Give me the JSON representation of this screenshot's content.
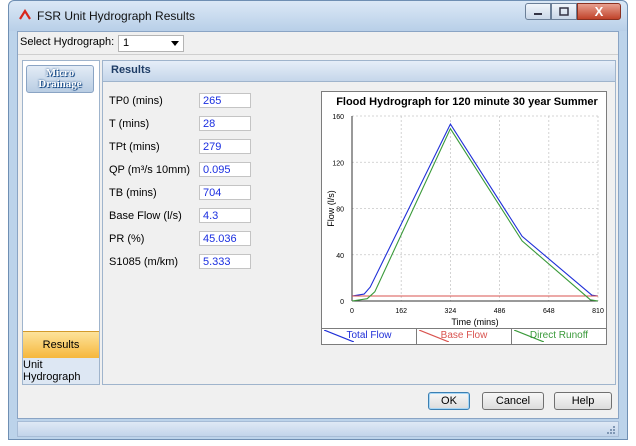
{
  "window": {
    "title": "FSR Unit Hydrograph Results",
    "close_glyph": "X"
  },
  "selector": {
    "label": "Select Hydrograph:",
    "value": "1"
  },
  "sidebar": {
    "logo_line1": "Micro",
    "logo_line2": "Drainage",
    "items": [
      {
        "label": "Results",
        "active": true
      },
      {
        "label": "Unit Hydrograph",
        "active": false
      }
    ]
  },
  "panel": {
    "title": "Results",
    "fields": [
      {
        "label": "TP0 (mins)",
        "value": "265"
      },
      {
        "label": "T (mins)",
        "value": "28"
      },
      {
        "label": "TPt (mins)",
        "value": "279"
      },
      {
        "label": "QP (m³/s 10mm)",
        "value": "0.095"
      },
      {
        "label": "TB (mins)",
        "value": "704"
      },
      {
        "label": "Base Flow (l/s)",
        "value": "4.3"
      },
      {
        "label": "PR (%)",
        "value": "45.036"
      },
      {
        "label": "S1085 (m/km)",
        "value": "5.333"
      }
    ]
  },
  "chart_data": {
    "type": "line",
    "title": "Flood Hydrograph for 120 minute 30 year Summer",
    "xlabel": "Time (mins)",
    "ylabel": "Flow (l/s)",
    "xlim": [
      0,
      810
    ],
    "ylim": [
      0,
      160
    ],
    "xticks": [
      0,
      162,
      324,
      486,
      648,
      810
    ],
    "yticks": [
      0,
      40,
      80,
      120,
      160
    ],
    "grid": true,
    "legend": "bottom",
    "series": [
      {
        "name": "Total Flow",
        "color": "#1f2fd8",
        "x": [
          0,
          40,
          60,
          324,
          560,
          790,
          810
        ],
        "y": [
          4.3,
          6,
          12,
          153,
          56,
          5,
          4.3
        ]
      },
      {
        "name": "Base Flow",
        "color": "#d9534f",
        "x": [
          0,
          810
        ],
        "y": [
          4.3,
          4.3
        ]
      },
      {
        "name": "Direct Runoff",
        "color": "#3a9a3a",
        "x": [
          0,
          50,
          75,
          324,
          560,
          785,
          810
        ],
        "y": [
          0,
          2,
          8,
          149,
          52,
          1,
          0
        ]
      }
    ]
  },
  "buttons": {
    "ok": "OK",
    "cancel": "Cancel",
    "help": "Help"
  }
}
